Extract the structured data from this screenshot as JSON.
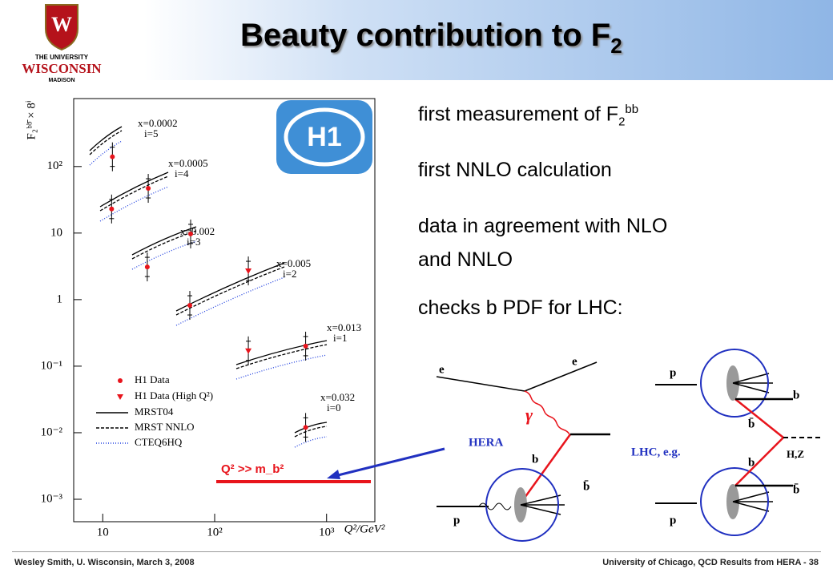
{
  "header": {
    "title": "Beauty contribution to F",
    "title_sub": "2"
  },
  "logo": {
    "line1": "THE UNIVERSITY",
    "line2": "WISCONSIN",
    "line3": "MADISON",
    "h1": "H1"
  },
  "bullets": [
    {
      "text": "first measurement of F",
      "sub": "2",
      "sup": "bb"
    },
    {
      "text": "first NNLO calculation"
    },
    {
      "text": "data in agreement with NLO"
    },
    {
      "text": "and NNLO"
    },
    {
      "text": "checks b PDF for LHC:"
    }
  ],
  "chart_data": {
    "type": "scatter",
    "log_x": true,
    "log_y": true,
    "x_label": "Q²/GeV²",
    "y_label": "F₂ᵇᵇ̄ × 8ⁱ",
    "xlim": [
      5.5,
      2700
    ],
    "ylim": [
      0.00046,
      1050
    ],
    "xticks": [
      10,
      {
        "value": 100,
        "label": "10²"
      },
      {
        "value": 1000,
        "label": "10³"
      }
    ],
    "yticks": [
      {
        "value": 0.001,
        "label": "10⁻³"
      },
      {
        "value": 0.01,
        "label": "10⁻²"
      },
      {
        "value": 0.1,
        "label": "10⁻¹"
      },
      1,
      10,
      {
        "value": 100,
        "label": "10²"
      }
    ],
    "series": [
      {
        "name": "H1 Data",
        "color": "#e8141c",
        "marker": "circle",
        "x": [
          12.2,
          12,
          25.5,
          25,
          61,
          60,
          650,
          650
        ],
        "values": [
          140,
          23,
          47,
          3.1,
          9.7,
          0.82,
          0.2,
          0.012
        ]
      },
      {
        "name": "H1 Data (High Q²)",
        "color": "#e8141c",
        "marker": "triangle",
        "x": [
          200,
          200
        ],
        "values": [
          2.7,
          0.17
        ]
      }
    ],
    "lines": [
      {
        "name": "MRST04",
        "color": "#000000",
        "dash": "none"
      },
      {
        "name": "MRST NNLO",
        "color": "#000000",
        "dash": "4 2"
      },
      {
        "name": "CTEQ6HQ",
        "color": "#2040e0",
        "dash": "1 2"
      }
    ],
    "bins": [
      {
        "x": "x=0.0002",
        "i": "i=5"
      },
      {
        "x": "x=0.0005",
        "i": "i=4"
      },
      {
        "x": "x=0.002",
        "i": "i=3"
      },
      {
        "x": "x=0.005",
        "i": "i=2"
      },
      {
        "x": "x=0.013",
        "i": "i=1"
      },
      {
        "x": "x=0.032",
        "i": "i=0"
      }
    ],
    "cut_label": "Q² >> m_b²"
  },
  "hera": {
    "label": "HERA",
    "e_in": "e",
    "e_out": "e",
    "photon": "γ",
    "b": "b",
    "bbar": "b̄",
    "p": "p"
  },
  "lhc": {
    "label": "LHC, e.g.",
    "p1": "p",
    "b1": "b",
    "bbar1": "b̄",
    "b2": "b",
    "bbar2": "b̄",
    "p2": "p",
    "boson": "H,Z"
  },
  "footer": {
    "left": "Wesley Smith, U. Wisconsin, March 3, 2008",
    "right": "University of Chicago, QCD Results from HERA -  38"
  }
}
